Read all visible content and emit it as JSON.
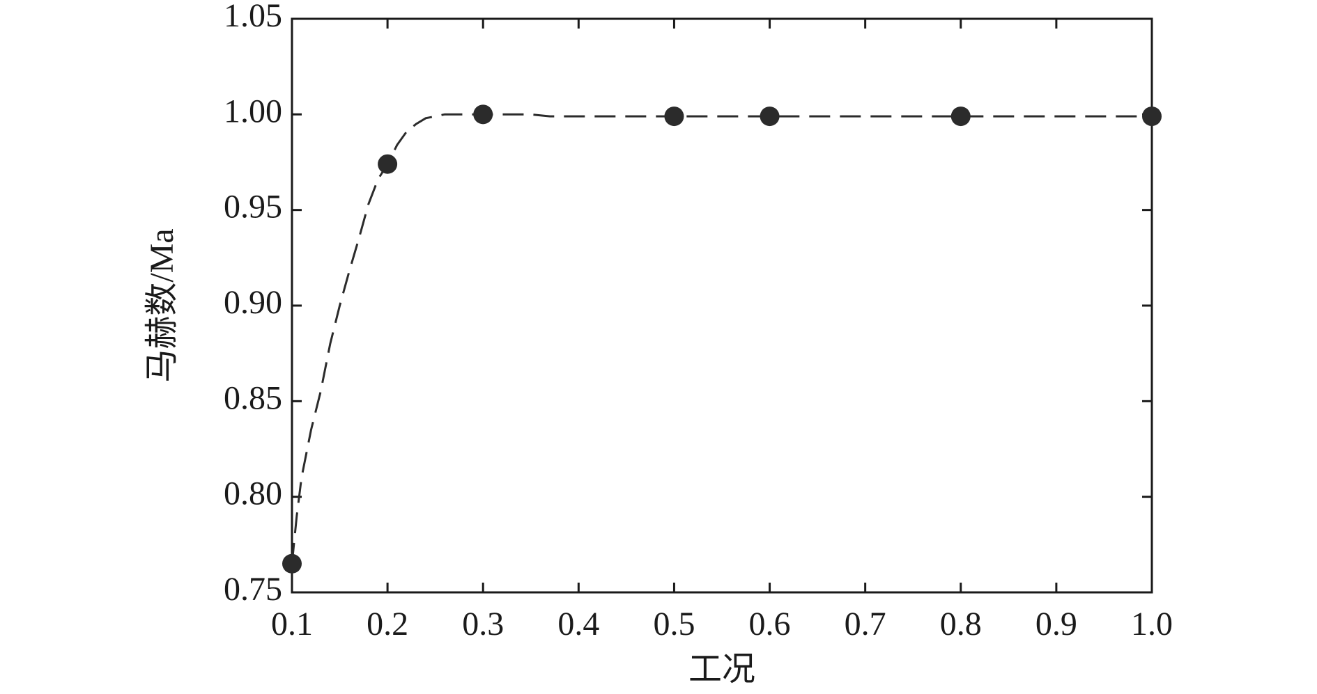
{
  "chart_data": {
    "type": "scatter",
    "xlabel": "工况",
    "ylabel": "马赫数/Ma",
    "xlim": [
      0.1,
      1.0
    ],
    "ylim": [
      0.75,
      1.05
    ],
    "xticks": [
      0.1,
      0.2,
      0.3,
      0.4,
      0.5,
      0.6,
      0.7,
      0.8,
      0.9,
      {
        "value": 1,
        "label": "1.0"
      }
    ],
    "yticks": [
      0.75,
      {
        "value": 0.8,
        "label": "0.80"
      },
      0.85,
      {
        "value": 0.9,
        "label": "0.90"
      },
      0.95,
      {
        "value": 1,
        "label": "1.00"
      },
      1.05
    ],
    "series": [
      {
        "mode": "markers",
        "color": "#2b2b2b",
        "x": [
          0.1,
          0.2,
          0.3,
          0.5,
          0.6,
          0.8,
          1.0
        ],
        "values": [
          0.765,
          0.974,
          1.0,
          0.999,
          0.999,
          0.999,
          0.999
        ]
      },
      {
        "mode": "dashed-line",
        "color": "#2b2b2b",
        "x": [
          0.1,
          0.105,
          0.11,
          0.12,
          0.13,
          0.14,
          0.15,
          0.16,
          0.17,
          0.18,
          0.19,
          0.2,
          0.21,
          0.22,
          0.23,
          0.24,
          0.25,
          0.26,
          0.27,
          0.3,
          0.35,
          0.37,
          1.0
        ],
        "values": [
          0.765,
          0.79,
          0.81,
          0.835,
          0.855,
          0.88,
          0.9,
          0.918,
          0.935,
          0.953,
          0.966,
          0.974,
          0.984,
          0.991,
          0.995,
          0.998,
          0.999,
          1.0,
          1.0,
          1.0,
          1.0,
          0.999,
          0.999
        ]
      }
    ]
  }
}
